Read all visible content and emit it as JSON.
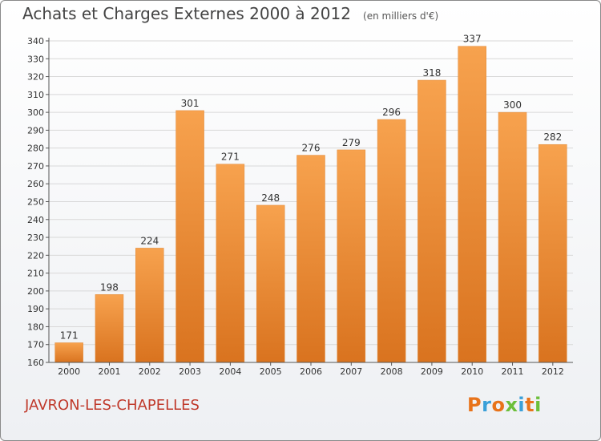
{
  "header": {
    "title": "Achats et Charges Externes 2000 à 2012",
    "unit": "(en milliers d'€)"
  },
  "commune": "JAVRON-LES-CHAPELLES",
  "logo": {
    "text": "Proxiti",
    "letters": [
      {
        "char": "P",
        "color": "#e8731a"
      },
      {
        "char": "r",
        "color": "#3aa0d8"
      },
      {
        "char": "o",
        "color": "#e8731a"
      },
      {
        "char": "x",
        "color": "#6cbf3a"
      },
      {
        "char": "i",
        "color": "#3aa0d8"
      },
      {
        "char": "t",
        "color": "#e8731a"
      },
      {
        "char": "i",
        "color": "#6cbf3a"
      }
    ]
  },
  "colors": {
    "bar_light": "#f7a24e",
    "bar_dark": "#d9731f",
    "grid": "#d8d8d8",
    "axis": "#555555"
  },
  "chart_data": {
    "type": "bar",
    "title": "Achats et Charges Externes 2000 à 2012",
    "subtitle": "(en milliers d'€)",
    "categories": [
      "2000",
      "2001",
      "2002",
      "2003",
      "2004",
      "2005",
      "2006",
      "2007",
      "2008",
      "2009",
      "2010",
      "2011",
      "2012"
    ],
    "values": [
      171,
      198,
      224,
      301,
      271,
      248,
      276,
      279,
      296,
      318,
      337,
      300,
      282
    ],
    "ylim": [
      160,
      340
    ],
    "ytick_step": 10,
    "grid": true,
    "xlabel": "",
    "ylabel": ""
  }
}
